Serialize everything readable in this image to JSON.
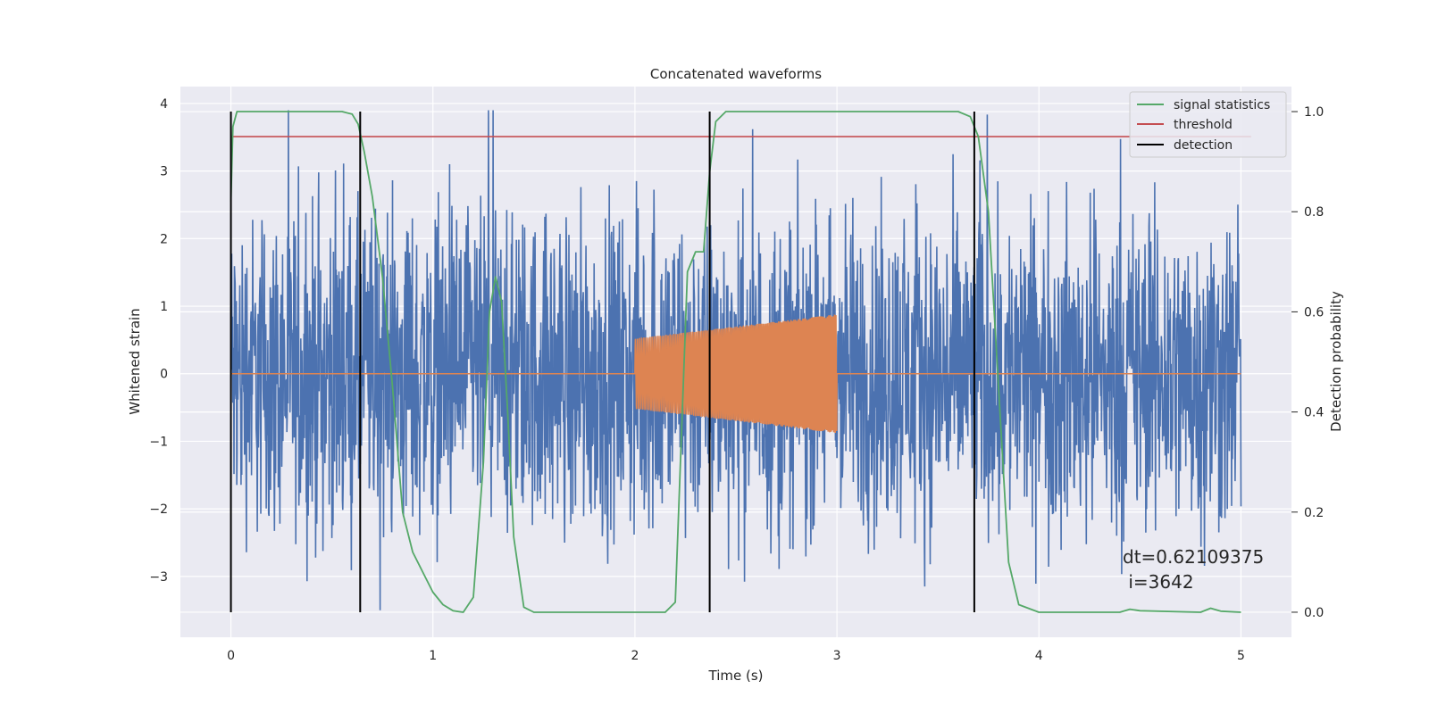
{
  "chart_data": {
    "type": "line",
    "title": "Concatenated waveforms",
    "xlabel": "Time (s)",
    "ylabel": "Whitened strain",
    "y2label": "Detection probability",
    "xlim": [
      -0.25,
      5.25
    ],
    "ylim": [
      -3.9,
      4.25
    ],
    "y2lim": [
      -0.05,
      1.05
    ],
    "xticks": [
      0,
      1,
      2,
      3,
      4,
      5
    ],
    "xtick_labels": [
      "0",
      "1",
      "2",
      "3",
      "4",
      "5"
    ],
    "yticks": [
      -3,
      -2,
      -1,
      0,
      1,
      2,
      3,
      4
    ],
    "ytick_labels": [
      "−3",
      "−2",
      "−1",
      "0",
      "1",
      "2",
      "3",
      "4"
    ],
    "y2ticks": [
      0.0,
      0.2,
      0.4,
      0.6,
      0.8,
      1.0
    ],
    "y2tick_labels": [
      "0.0",
      "0.2",
      "0.4",
      "0.6",
      "0.8",
      "1.0"
    ],
    "grid": true,
    "legend_position": "top-right",
    "legend": [
      {
        "label": "signal statistics",
        "color": "#55a868"
      },
      {
        "label": "threshold",
        "color": "#c44e52"
      },
      {
        "label": "detection",
        "color": "#000000"
      }
    ],
    "annotation": [
      "dt=0.62109375",
      " i=3642"
    ],
    "colors": {
      "noise": "#4c72b0",
      "injection": "#dd8452",
      "statistic": "#55a868",
      "threshold": "#c44e52",
      "detection": "#000000",
      "background": "#eaeaf2"
    },
    "noise_strain": {
      "t_start": 0,
      "t_end": 5,
      "envelope_typical": 1.7,
      "peak_max": 3.9,
      "peak_min": -3.5
    },
    "injected_signal": {
      "t_start": 2.0,
      "t_end": 3.0,
      "amplitude_start": 0.52,
      "amplitude_end": 0.88,
      "zero_outside": true
    },
    "signal_statistics": {
      "x": [
        0.0,
        0.01,
        0.03,
        0.05,
        0.1,
        0.3,
        0.55,
        0.6,
        0.63,
        0.66,
        0.7,
        0.75,
        0.8,
        0.85,
        0.9,
        0.95,
        1.0,
        1.05,
        1.1,
        1.15,
        1.2,
        1.25,
        1.28,
        1.31,
        1.34,
        1.37,
        1.4,
        1.45,
        1.5,
        2.0,
        2.15,
        2.2,
        2.23,
        2.26,
        2.3,
        2.34,
        2.37,
        2.4,
        2.45,
        2.5,
        3.0,
        3.6,
        3.66,
        3.7,
        3.75,
        3.8,
        3.85,
        3.9,
        4.0,
        4.2,
        4.4,
        4.45,
        4.5,
        4.8,
        4.85,
        4.9,
        5.0
      ],
      "y": [
        0.82,
        0.97,
        1.0,
        1.0,
        1.0,
        1.0,
        1.0,
        0.995,
        0.975,
        0.92,
        0.83,
        0.67,
        0.45,
        0.2,
        0.12,
        0.08,
        0.04,
        0.015,
        0.003,
        0.0,
        0.03,
        0.3,
        0.6,
        0.67,
        0.62,
        0.4,
        0.15,
        0.01,
        0.0,
        0.0,
        0.0,
        0.02,
        0.35,
        0.68,
        0.72,
        0.72,
        0.88,
        0.98,
        1.0,
        1.0,
        1.0,
        1.0,
        0.99,
        0.95,
        0.8,
        0.45,
        0.1,
        0.015,
        0.0,
        0.0,
        0.0,
        0.006,
        0.003,
        0.0,
        0.008,
        0.002,
        0.0
      ]
    },
    "threshold": 0.95,
    "detections": [
      0.0,
      0.64,
      2.37,
      3.68
    ]
  }
}
